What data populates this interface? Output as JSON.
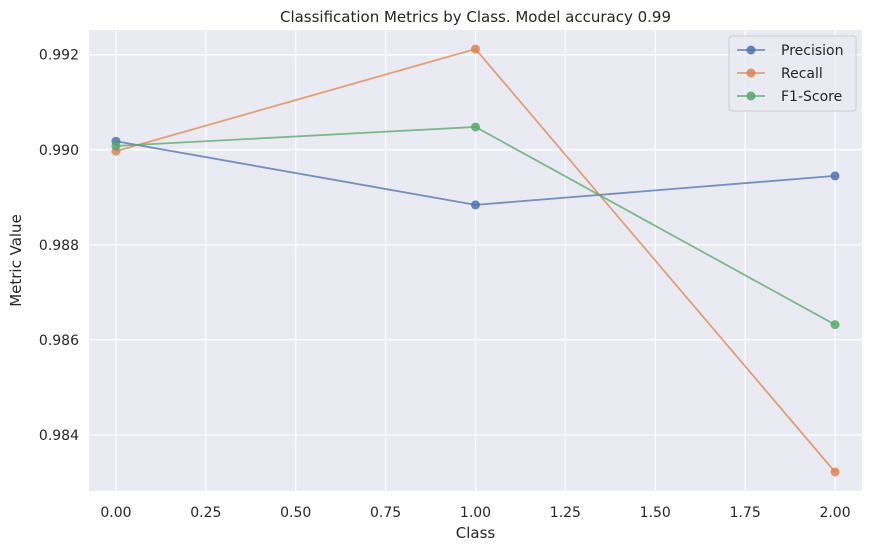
{
  "chart_data": {
    "type": "line",
    "title": "Classification Metrics by Class. Model accuracy 0.99",
    "xlabel": "Class",
    "ylabel": "Metric Value",
    "x": [
      0.0,
      1.0,
      2.0
    ],
    "series": [
      {
        "name": "Precision",
        "color": "#4c72b0",
        "values": [
          0.99018,
          0.98884,
          0.98945
        ]
      },
      {
        "name": "Recall",
        "color": "#dd8452",
        "values": [
          0.98997,
          0.99212,
          0.98322
        ]
      },
      {
        "name": "F1-Score",
        "color": "#55a868",
        "values": [
          0.99008,
          0.99048,
          0.98632
        ]
      }
    ],
    "xlim": [
      -0.075,
      2.075
    ],
    "ylim": [
      0.98282,
      0.99252
    ],
    "xticks": [
      0.0,
      0.25,
      0.5,
      0.75,
      1.0,
      1.25,
      1.5,
      1.75,
      2.0
    ],
    "xtick_labels": [
      "0.00",
      "0.25",
      "0.50",
      "0.75",
      "1.00",
      "1.25",
      "1.50",
      "1.75",
      "2.00"
    ],
    "yticks": [
      0.984,
      0.986,
      0.988,
      0.99,
      0.992
    ],
    "ytick_labels": [
      "0.984",
      "0.986",
      "0.988",
      "0.990",
      "0.992"
    ],
    "grid": true,
    "legend_position": "top-right",
    "plot_background": "#eaeaf2",
    "grid_color": "#ffffff"
  }
}
